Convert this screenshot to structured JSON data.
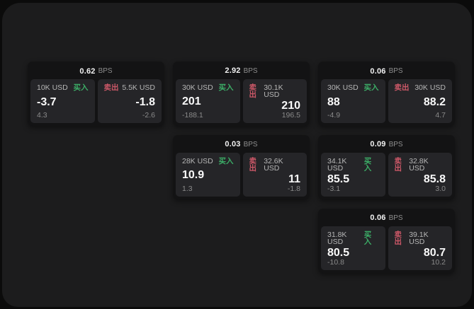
{
  "labels": {
    "bps_unit": "BPS",
    "buy": "买入",
    "sell": "卖出"
  },
  "colors": {
    "buy": "#3cae67",
    "sell": "#cd5868",
    "card_bg": "#131314",
    "panel_bg": "#252528",
    "app_bg": "#1c1c1d"
  },
  "cards": [
    {
      "bps": "0.62",
      "buy": {
        "amount": "10K USD",
        "value": "-3.7",
        "delta": "4.3"
      },
      "sell": {
        "amount": "5.5K USD",
        "value": "-1.8",
        "delta": "-2.6"
      }
    },
    {
      "bps": "2.92",
      "buy": {
        "amount": "30K USD",
        "value": "201",
        "delta": "-188.1"
      },
      "sell": {
        "amount": "30.1K USD",
        "value": "210",
        "delta": "196.5"
      }
    },
    {
      "bps": "0.06",
      "buy": {
        "amount": "30K USD",
        "value": "88",
        "delta": "-4.9"
      },
      "sell": {
        "amount": "30K USD",
        "value": "88.2",
        "delta": "4.7"
      }
    },
    {
      "bps": "0.03",
      "buy": {
        "amount": "28K USD",
        "value": "10.9",
        "delta": "1.3"
      },
      "sell": {
        "amount": "32.6K USD",
        "value": "11",
        "delta": "-1.8"
      }
    },
    {
      "bps": "0.09",
      "buy": {
        "amount": "34.1K USD",
        "value": "85.5",
        "delta": "-3.1"
      },
      "sell": {
        "amount": "32.8K USD",
        "value": "85.8",
        "delta": "3.0"
      }
    },
    {
      "bps": "0.06",
      "buy": {
        "amount": "31.8K USD",
        "value": "80.5",
        "delta": "-10.8"
      },
      "sell": {
        "amount": "39.1K USD",
        "value": "80.7",
        "delta": "10.2"
      }
    }
  ]
}
